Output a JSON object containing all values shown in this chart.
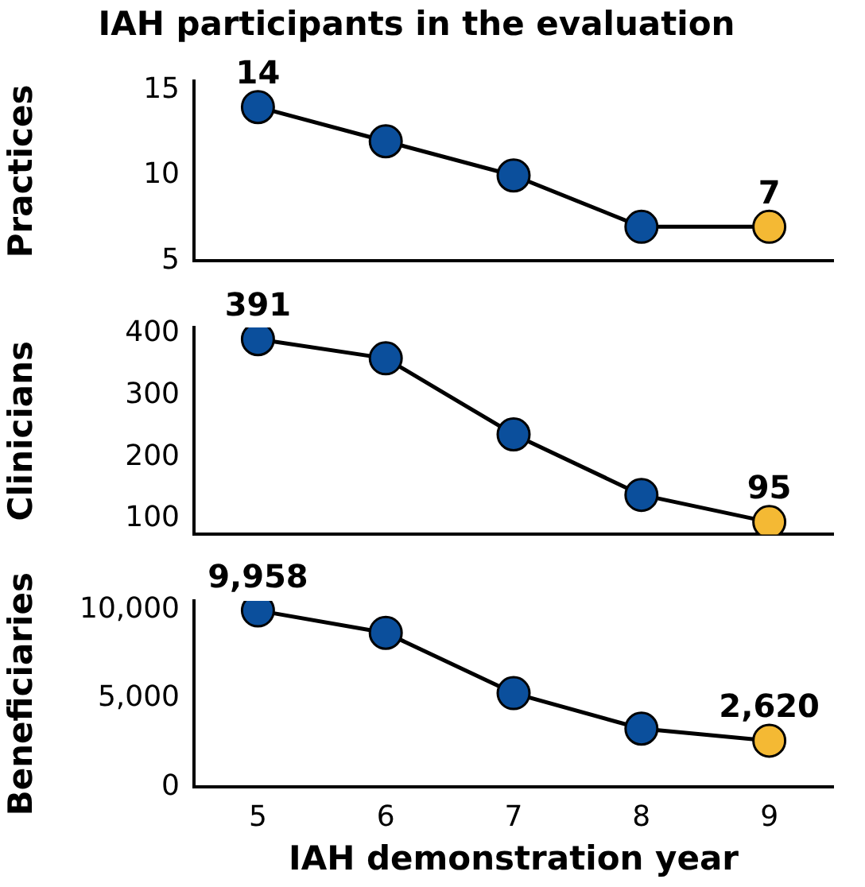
{
  "chart_data": [
    {
      "type": "line",
      "title": "IAH participants in the evaluation",
      "ylabel": "Practices",
      "categories": [
        "5",
        "6",
        "7",
        "8",
        "9"
      ],
      "ylim": [
        5,
        15.5
      ],
      "yticks": [
        5,
        10,
        15
      ],
      "tick_labels": "y",
      "grid": false,
      "legend": false,
      "marker": "circle",
      "line_style": "solid",
      "series": [
        {
          "color": "#000000",
          "colors": [
            "#0b4f9c",
            "#0b4f9c",
            "#0b4f9c",
            "#0b4f9c",
            "#f4b934"
          ],
          "values": [
            14,
            12,
            10,
            7,
            7
          ],
          "value_labels": [
            "14",
            null,
            null,
            null,
            "7"
          ]
        }
      ]
    },
    {
      "type": "line",
      "ylabel": "Clinicians",
      "categories": [
        "5",
        "6",
        "7",
        "8",
        "9"
      ],
      "ylim": [
        75,
        410
      ],
      "yticks": [
        100,
        200,
        300,
        400
      ],
      "tick_labels": "y",
      "grid": false,
      "legend": false,
      "marker": "circle",
      "line_style": "solid",
      "series": [
        {
          "color": "#000000",
          "colors": [
            "#0b4f9c",
            "#0b4f9c",
            "#0b4f9c",
            "#0b4f9c",
            "#f4b934"
          ],
          "values": [
            391,
            360,
            237,
            139,
            95
          ],
          "value_labels": [
            "391",
            null,
            null,
            null,
            "95"
          ]
        }
      ]
    },
    {
      "type": "line",
      "ylabel": "Beneficiaries",
      "xlabel": "IAH demonstration year",
      "categories": [
        "5",
        "6",
        "7",
        "8",
        "9"
      ],
      "ylim": [
        0,
        10500
      ],
      "yticks": [
        {
          "value": 0,
          "label": "0"
        },
        {
          "value": 5000,
          "label": "5,000"
        },
        {
          "value": 10000,
          "label": "10,000"
        }
      ],
      "grid": false,
      "legend": false,
      "marker": "circle",
      "line_style": "solid",
      "series": [
        {
          "color": "#000000",
          "colors": [
            "#0b4f9c",
            "#0b4f9c",
            "#0b4f9c",
            "#0b4f9c",
            "#f4b934"
          ],
          "values": [
            9958,
            8700,
            5300,
            3300,
            2620
          ],
          "value_labels": [
            "9,958",
            null,
            null,
            null,
            "2,620"
          ]
        }
      ]
    }
  ]
}
